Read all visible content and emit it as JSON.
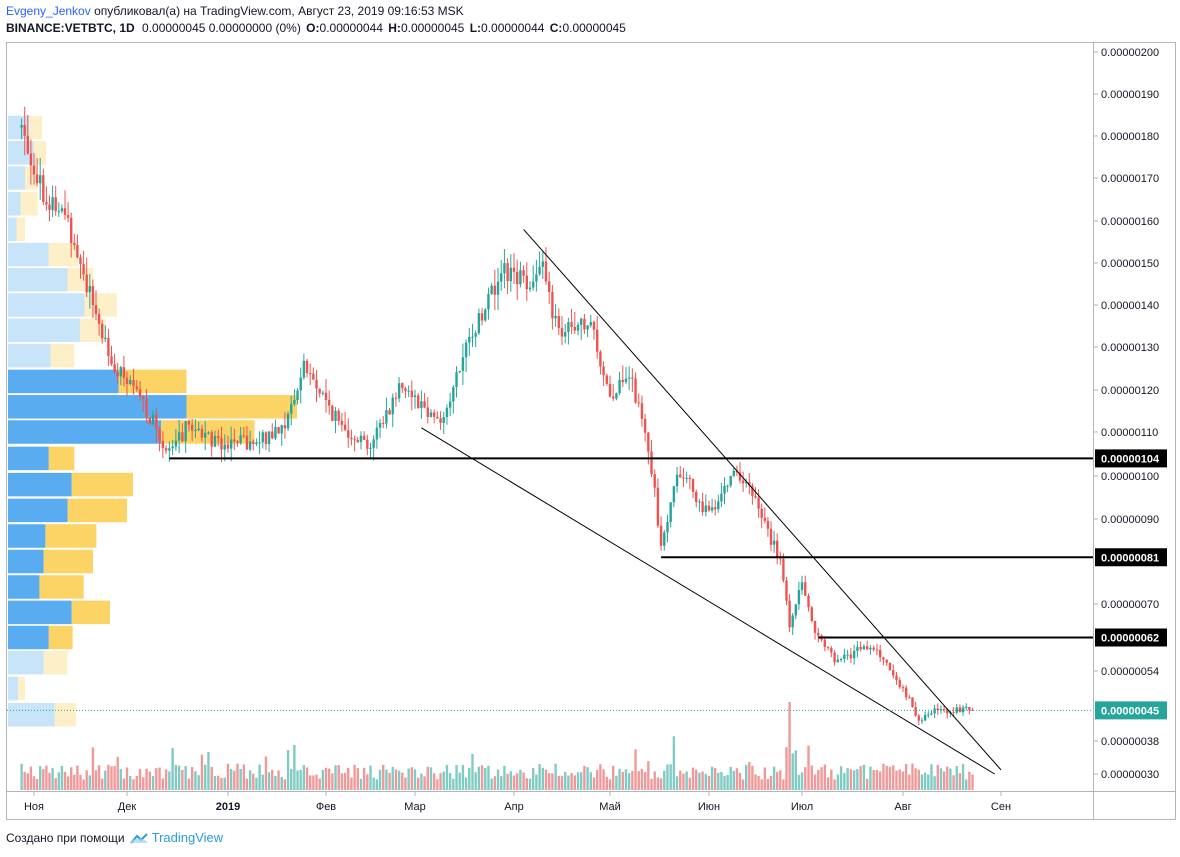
{
  "header": {
    "user": "Evgeny_Jenkov",
    "published_text": "опубликовал(а) на TradingView.com, Август 23, 2019 09:16:53 MSK",
    "symbol": "BINANCE:VETBTC, 1D",
    "change": "0.00000045 0.00000000 (0%)",
    "o_label": "O:",
    "o_value": "0.00000044",
    "h_label": "H:",
    "h_value": "0.00000045",
    "l_label": "L:",
    "l_value": "0.00000044",
    "c_label": "C:",
    "c_value": "0.00000045"
  },
  "footer": {
    "text": "Создано при помощи",
    "brand": "TradingView",
    "logo_icon": "tradingview-cloud-icon"
  },
  "chart_data": {
    "type": "candlestick",
    "title": "",
    "xlabel": "",
    "ylabel": "",
    "x_ticks": [
      "Ноя",
      "Дек",
      "2019",
      "Фев",
      "Мар",
      "Апр",
      "Май",
      "Июн",
      "Июл",
      "Авг",
      "Сен"
    ],
    "y_ticks": [
      "0.00000200",
      "0.00000190",
      "0.00000180",
      "0.00000170",
      "0.00000160",
      "0.00000150",
      "0.00000140",
      "0.00000130",
      "0.00000120",
      "0.00000110",
      "0.00000100",
      "0.00000090",
      "0.00000070",
      "0.00000054",
      "0.00000038",
      "0.00000030"
    ],
    "ylim": [
      "0.00000028",
      "0.00000205"
    ],
    "colors": {
      "up": "#26a69a",
      "down": "#ef5350",
      "up_volume": "#80cbc4",
      "down_volume": "#ef9a9a",
      "profile_up_strong": "#5aacf0",
      "profile_up_light": "#c8e4f8",
      "profile_down_strong": "#fcd365",
      "profile_down_light": "#fdf0c8"
    },
    "price_path": [
      {
        "date": "2018-10-28",
        "price": 1.82e-06
      },
      {
        "date": "2018-11-05",
        "price": 1.65e-06
      },
      {
        "date": "2018-11-12",
        "price": 1.6e-06
      },
      {
        "date": "2018-11-20",
        "price": 1.4e-06
      },
      {
        "date": "2018-11-27",
        "price": 1.25e-06
      },
      {
        "date": "2018-12-05",
        "price": 1.18e-06
      },
      {
        "date": "2018-12-14",
        "price": 1.05e-06
      },
      {
        "date": "2018-12-20",
        "price": 1.12e-06
      },
      {
        "date": "2018-12-28",
        "price": 1.08e-06
      },
      {
        "date": "2019-01-10",
        "price": 1.07e-06
      },
      {
        "date": "2019-01-20",
        "price": 1.13e-06
      },
      {
        "date": "2019-01-25",
        "price": 1.26e-06
      },
      {
        "date": "2019-02-05",
        "price": 1.12e-06
      },
      {
        "date": "2019-02-15",
        "price": 1.07e-06
      },
      {
        "date": "2019-02-25",
        "price": 1.22e-06
      },
      {
        "date": "2019-03-05",
        "price": 1.15e-06
      },
      {
        "date": "2019-03-10",
        "price": 1.13e-06
      },
      {
        "date": "2019-03-15",
        "price": 1.25e-06
      },
      {
        "date": "2019-03-20",
        "price": 1.35e-06
      },
      {
        "date": "2019-03-28",
        "price": 1.48e-06
      },
      {
        "date": "2019-04-04",
        "price": 1.46e-06
      },
      {
        "date": "2019-04-10",
        "price": 1.48e-06
      },
      {
        "date": "2019-04-15",
        "price": 1.33e-06
      },
      {
        "date": "2019-04-25",
        "price": 1.35e-06
      },
      {
        "date": "2019-05-01",
        "price": 1.19e-06
      },
      {
        "date": "2019-05-08",
        "price": 1.22e-06
      },
      {
        "date": "2019-05-14",
        "price": 1.02e-06
      },
      {
        "date": "2019-05-17",
        "price": 8.3e-07
      },
      {
        "date": "2019-05-22",
        "price": 1.02e-06
      },
      {
        "date": "2019-06-01",
        "price": 9.1e-07
      },
      {
        "date": "2019-06-09",
        "price": 1.02e-06
      },
      {
        "date": "2019-06-16",
        "price": 9.4e-07
      },
      {
        "date": "2019-06-24",
        "price": 8e-07
      },
      {
        "date": "2019-06-27",
        "price": 6.5e-07
      },
      {
        "date": "2019-07-01",
        "price": 7.6e-07
      },
      {
        "date": "2019-07-05",
        "price": 6.3e-07
      },
      {
        "date": "2019-07-12",
        "price": 5.6e-07
      },
      {
        "date": "2019-07-20",
        "price": 6e-07
      },
      {
        "date": "2019-07-25",
        "price": 5.8e-07
      },
      {
        "date": "2019-08-01",
        "price": 5e-07
      },
      {
        "date": "2019-08-06",
        "price": 4.3e-07
      },
      {
        "date": "2019-08-12",
        "price": 4.5e-07
      },
      {
        "date": "2019-08-23",
        "price": 4.5e-07
      }
    ],
    "volume_spikes": [
      {
        "date": "2019-06-27",
        "relative": 1.0
      },
      {
        "date": "2019-06-29",
        "relative": 0.45
      },
      {
        "date": "2019-08-04",
        "relative": 0.3
      },
      {
        "date": "2019-03-23",
        "relative": 0.25
      }
    ],
    "horizontal_levels": [
      {
        "label": "0.00000104",
        "price": 1.04e-06,
        "from_date": "2018-12-14"
      },
      {
        "label": "0.00000081",
        "price": 8.1e-07,
        "from_date": "2019-05-17"
      },
      {
        "label": "0.00000062",
        "price": 6.2e-07,
        "from_date": "2019-07-06"
      }
    ],
    "trend_lines": [
      {
        "from": {
          "date": "2019-04-04",
          "price": 1.58e-06
        },
        "to": {
          "date": "2019-09-01",
          "price": 3.1e-07
        }
      },
      {
        "from": {
          "date": "2019-03-03",
          "price": 1.11e-06
        },
        "to": {
          "date": "2019-08-30",
          "price": 3e-07
        }
      }
    ],
    "last_price": {
      "label": "0.00000045",
      "price": 4.5e-07
    },
    "volume_profile": [
      {
        "price": 1.82e-06,
        "up": 0.25,
        "down": 0.15,
        "strong": false
      },
      {
        "price": 1.76e-06,
        "up": 0.3,
        "down": 0.15,
        "strong": false
      },
      {
        "price": 1.7e-06,
        "up": 0.2,
        "down": 0.15,
        "strong": false
      },
      {
        "price": 1.64e-06,
        "up": 0.15,
        "down": 0.2,
        "strong": false
      },
      {
        "price": 1.58e-06,
        "up": 0.1,
        "down": 0.1,
        "strong": false
      },
      {
        "price": 1.52e-06,
        "up": 0.48,
        "down": 0.35,
        "strong": false
      },
      {
        "price": 1.46e-06,
        "up": 0.7,
        "down": 0.3,
        "strong": false
      },
      {
        "price": 1.4e-06,
        "up": 0.9,
        "down": 0.38,
        "strong": false
      },
      {
        "price": 1.34e-06,
        "up": 0.85,
        "down": 0.3,
        "strong": false
      },
      {
        "price": 1.28e-06,
        "up": 0.5,
        "down": 0.28,
        "strong": false
      },
      {
        "price": 1.22e-06,
        "up": 1.3,
        "down": 0.8,
        "strong": true
      },
      {
        "price": 1.16e-06,
        "up": 2.1,
        "down": 1.3,
        "strong": true
      },
      {
        "price": 1.1e-06,
        "up": 1.8,
        "down": 1.1,
        "strong": true
      },
      {
        "price": 1.04e-06,
        "up": 0.48,
        "down": 0.3,
        "strong": true
      },
      {
        "price": 9.8e-07,
        "up": 0.75,
        "down": 0.72,
        "strong": true
      },
      {
        "price": 9.2e-07,
        "up": 0.7,
        "down": 0.7,
        "strong": true
      },
      {
        "price": 8.6e-07,
        "up": 0.44,
        "down": 0.6,
        "strong": true
      },
      {
        "price": 8e-07,
        "up": 0.42,
        "down": 0.58,
        "strong": true
      },
      {
        "price": 7.4e-07,
        "up": 0.37,
        "down": 0.52,
        "strong": true
      },
      {
        "price": 6.8e-07,
        "up": 0.75,
        "down": 0.45,
        "strong": true
      },
      {
        "price": 6.2e-07,
        "up": 0.48,
        "down": 0.28,
        "strong": true
      },
      {
        "price": 5.6e-07,
        "up": 0.42,
        "down": 0.28,
        "strong": false
      },
      {
        "price": 5e-07,
        "up": 0.12,
        "down": 0.08,
        "strong": false
      },
      {
        "price": 4.4e-07,
        "up": 0.55,
        "down": 0.25,
        "strong": false
      }
    ]
  }
}
